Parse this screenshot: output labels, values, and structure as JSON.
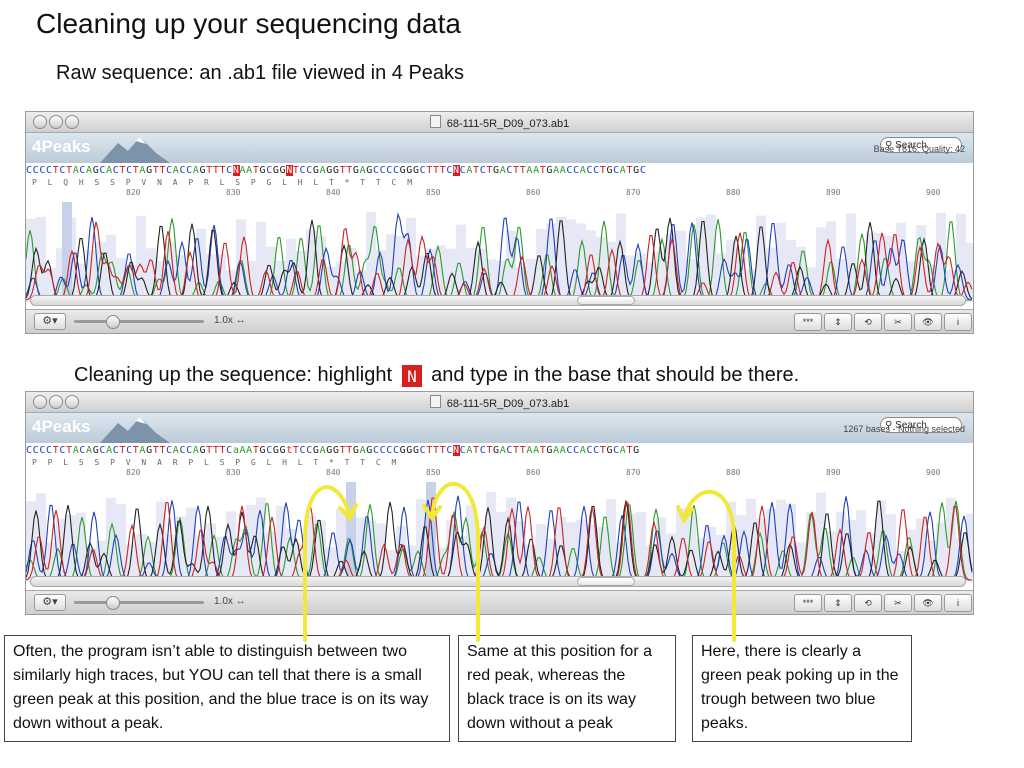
{
  "slide": {
    "title": "Cleaning up your sequencing data",
    "subtitle_raw": "Raw sequence: an  .ab1 file viewed in 4 Peaks",
    "subtitle_clean_before": "Cleaning up the sequence: highlight",
    "subtitle_clean_after": "and type in the base that should be there."
  },
  "window1": {
    "title": "68-111-5R_D09_073.ab1",
    "app_name": "4Peaks",
    "search_placeholder": "Search",
    "status": "Base T816, Quality: 42",
    "sequence": "CCCCTCTACAGCACTCTAGTTCACCAGTTTCNAATGCGGNTCCGAGGTTGAGCCCCGGGCTTTCNCATCTGACTTAATGAACCACCTGCATGC",
    "aa_sequence": "P  L  Q  H  S  S  P  V  N  A  P  R  L  S  P  G  L  H  L  T  *  T  T  C  M",
    "ticks": [
      "820",
      "830",
      "840",
      "850",
      "860",
      "870",
      "880",
      "890",
      "900"
    ],
    "zoom": "1.0x"
  },
  "window2": {
    "title": "68-111-5R_D09_073.ab1",
    "app_name": "4Peaks",
    "search_placeholder": "Search",
    "status": "1267 bases - Nothing selected",
    "sequence": "CCCCTCTACAGCACTCTAGTTCACCAGTTTCaAATGCGGtTCCGAGGTTGAGCCCCGGGCTTTCNCATCTGACTTAATGAACCACCTGCATG",
    "aa_sequence": "P  P  L  S  S  P  V  N  A  R  P  L  S  P  G  L  H  L  T  *  T  T  C  M",
    "ticks": [
      "820",
      "830",
      "840",
      "850",
      "860",
      "870",
      "880",
      "890",
      "900"
    ],
    "zoom": "1.0x"
  },
  "toolbar_buttons": [
    "***",
    "⇕",
    "⟲",
    "✂",
    "👁",
    "i"
  ],
  "callouts": {
    "left": "Often, the program isn’t able to distinguish between two similarly high traces, but YOU can tell that there is a small green peak at this position, and the blue trace is on its way down without a peak.",
    "middle": "Same at this position for a red peak, whereas the black trace is on its way down without a peak",
    "right": "Here, there is clearly a green peak poking up in the trough between two blue peaks."
  },
  "colors": {
    "A": "#2a9a2a",
    "C": "#1f3fbf",
    "G": "#222222",
    "T": "#cc2222",
    "arrow": "#f2e83a",
    "toolbar": "#c9d6e3"
  }
}
